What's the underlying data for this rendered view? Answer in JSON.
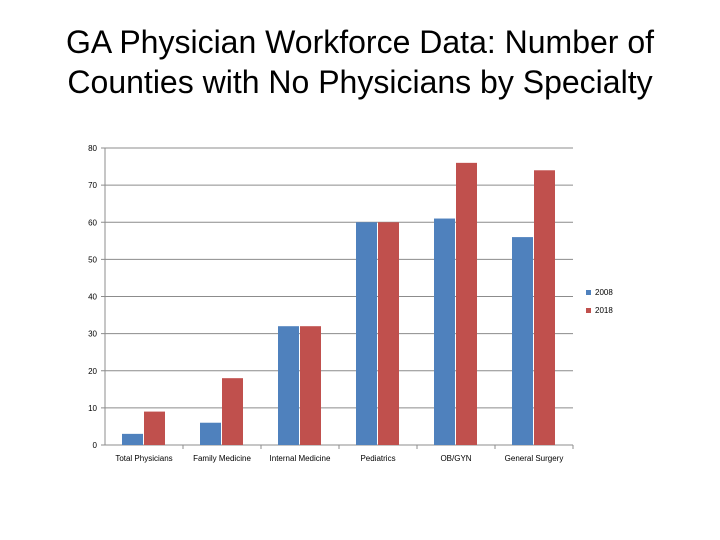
{
  "slide": {
    "title_line1": "GA Physician Workforce Data: Number of",
    "title_line2": "Counties with No Physicians by Specialty"
  },
  "chart_data": {
    "type": "bar",
    "title": "",
    "xlabel": "",
    "ylabel": "",
    "ylim": [
      0,
      80
    ],
    "yticks": [
      0,
      10,
      20,
      30,
      40,
      50,
      60,
      70,
      80
    ],
    "grid": true,
    "legend_position": "right",
    "categories": [
      "Total Physicians",
      "Family Medicine",
      "Internal Medicine",
      "Pediatrics",
      "OB/GYN",
      "General Surgery"
    ],
    "series": [
      {
        "name": "2008",
        "color": "#4F81BD",
        "values": [
          3,
          6,
          32,
          60,
          61,
          56
        ]
      },
      {
        "name": "2018",
        "color": "#C0504D",
        "values": [
          9,
          18,
          32,
          60,
          76,
          74
        ]
      }
    ]
  }
}
